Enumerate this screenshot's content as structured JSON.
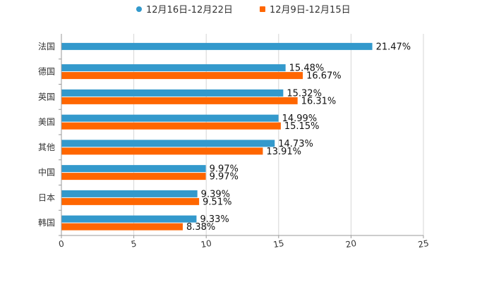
{
  "chart_data": {
    "type": "bar",
    "orientation": "horizontal",
    "categories": [
      "法国",
      "德国",
      "英国",
      "美国",
      "其他",
      "中国",
      "日本",
      "韩国"
    ],
    "series": [
      {
        "name": "12月16日-12月22日",
        "color": "#3399cc",
        "values": [
          21.47,
          15.48,
          15.32,
          14.99,
          14.73,
          9.97,
          9.39,
          9.33
        ],
        "labels": [
          "21.47%",
          "15.48%",
          "15.32%",
          "14.99%",
          "14.73%",
          "9.97%",
          "9.39%",
          "9.33%"
        ]
      },
      {
        "name": "12月9日-12月15日",
        "color": "#ff6600",
        "values": [
          null,
          16.67,
          16.31,
          15.15,
          13.91,
          9.97,
          9.51,
          8.38
        ],
        "labels": [
          "",
          "16.67%",
          "16.31%",
          "15.15%",
          "13.91%",
          "9.97%",
          "9.51%",
          "8.38%"
        ]
      }
    ],
    "xlim": [
      0,
      25
    ],
    "xticks": [
      0,
      5,
      10,
      15,
      20,
      25
    ],
    "xtick_labels": [
      "0",
      "5",
      "10",
      "15",
      "20",
      "25"
    ],
    "grid": true,
    "legend": "top-center",
    "title": "",
    "xlabel": "",
    "ylabel": ""
  }
}
